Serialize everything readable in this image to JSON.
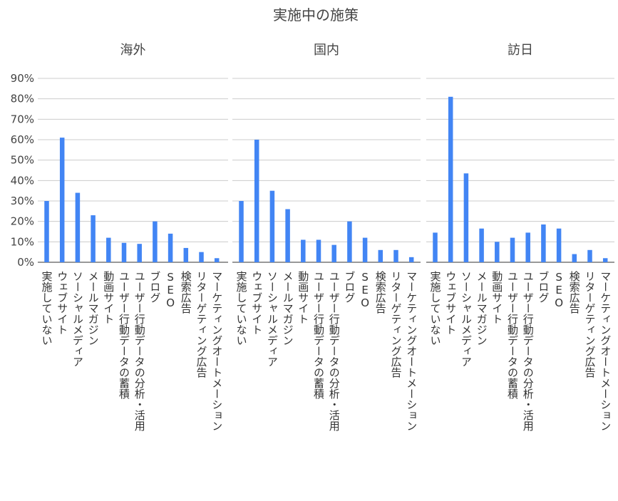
{
  "chart_data": {
    "type": "bar",
    "title": "実施中の施策",
    "ylim": [
      0,
      90
    ],
    "y_ticks": [
      "0%",
      "10%",
      "20%",
      "30%",
      "40%",
      "50%",
      "60%",
      "70%",
      "80%",
      "90%"
    ],
    "grid": true,
    "bar_color": "#4285f4",
    "categories": [
      "実施していない",
      "ウェブサイト",
      "ソーシャルメディア",
      "メールマガジン",
      "動画サイト",
      "ユーザー行動データの蓄積",
      "ユーザー行動データの分析・活用",
      "ブログ",
      "SEO",
      "検索広告",
      "リターゲティング広告",
      "マーケティングオートメーション"
    ],
    "panels": [
      {
        "name": "海外",
        "values": [
          30,
          61,
          34,
          23,
          12,
          9.5,
          9,
          20,
          14,
          7,
          5,
          2
        ]
      },
      {
        "name": "国内",
        "values": [
          30,
          60,
          35,
          26,
          11,
          11,
          8.5,
          20,
          12,
          6,
          6,
          2.5
        ]
      },
      {
        "name": "訪日",
        "values": [
          14.5,
          81,
          43.5,
          16.5,
          10,
          12,
          14.5,
          18.5,
          16.5,
          4,
          6,
          2
        ]
      }
    ]
  }
}
